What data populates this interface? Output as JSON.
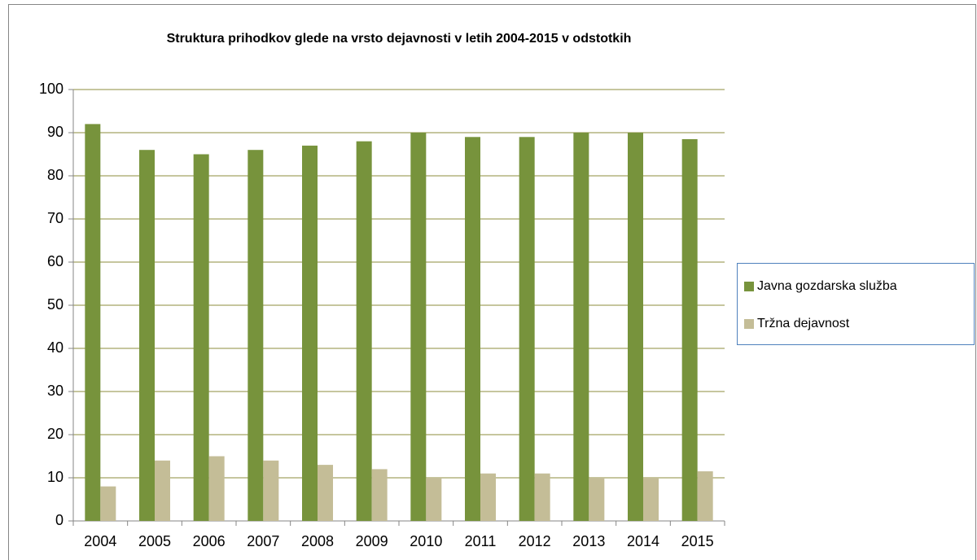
{
  "chart_data": {
    "type": "bar",
    "title": "Struktura prihodkov glede na vrsto dejavnosti v letih 2004-2015 v odstotkih",
    "categories": [
      "2004",
      "2005",
      "2006",
      "2007",
      "2008",
      "2009",
      "2010",
      "2011",
      "2012",
      "2013",
      "2014",
      "2015"
    ],
    "series": [
      {
        "name": "Javna gozdarska služba",
        "color": "#77933c",
        "values": [
          92,
          86,
          85,
          86,
          87,
          88,
          90,
          89,
          89,
          90,
          90,
          88.5
        ]
      },
      {
        "name": "Tržna dejavnost",
        "color": "#c4bd97",
        "values": [
          8,
          14,
          15,
          14,
          13,
          12,
          10,
          11,
          11,
          10,
          10,
          11.5
        ]
      }
    ],
    "ylim": [
      0,
      100
    ],
    "yticks": [
      0,
      10,
      20,
      30,
      40,
      50,
      60,
      70,
      80,
      90,
      100
    ],
    "grid": true,
    "legend": "right"
  }
}
